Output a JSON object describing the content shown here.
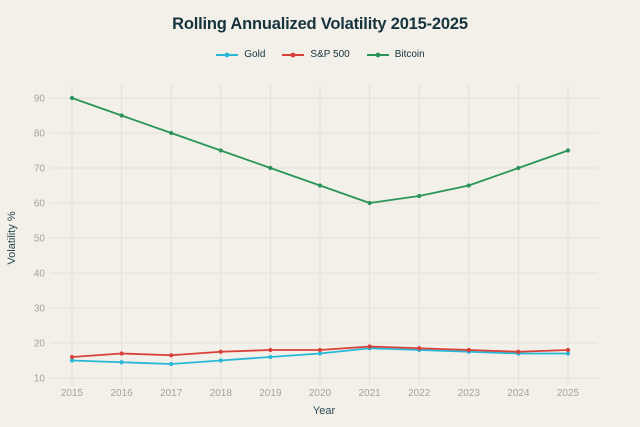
{
  "page": {
    "background": "#f2f0e8"
  },
  "header": {
    "title": "Rolling Annualized Volatility 2015-2025"
  },
  "chart_data": {
    "type": "line",
    "title": "Rolling Annualized Volatility 2015-2025",
    "xlabel": "Year",
    "ylabel": "Volatility %",
    "categories": [
      "2015",
      "2016",
      "2017",
      "2018",
      "2019",
      "2020",
      "2021",
      "2022",
      "2023",
      "2024",
      "2025"
    ],
    "series": [
      {
        "name": "Gold",
        "color": "#29b7d7",
        "values": [
          15,
          14.5,
          14,
          15,
          16,
          17,
          18.5,
          18,
          17.5,
          17,
          17
        ]
      },
      {
        "name": "S&P 500",
        "color": "#d8413a",
        "values": [
          16,
          17,
          16.5,
          17.5,
          18,
          18,
          19,
          18.5,
          18,
          17.5,
          18
        ]
      },
      {
        "name": "Bitcoin",
        "color": "#2b9559",
        "values": [
          90,
          85,
          80,
          75,
          70,
          65,
          60,
          62,
          65,
          70,
          75
        ]
      }
    ],
    "y_ticks": [
      10,
      20,
      30,
      40,
      50,
      60,
      70,
      80,
      90
    ],
    "ylim": [
      8,
      95
    ],
    "grid": true,
    "legend_position": "top-center",
    "colors": {
      "grid": "#e3e1d8",
      "tick_label": "#a3a49e",
      "axis_label": "#2c4a54",
      "title": "#16333e",
      "background": "#f2f0e8"
    }
  }
}
